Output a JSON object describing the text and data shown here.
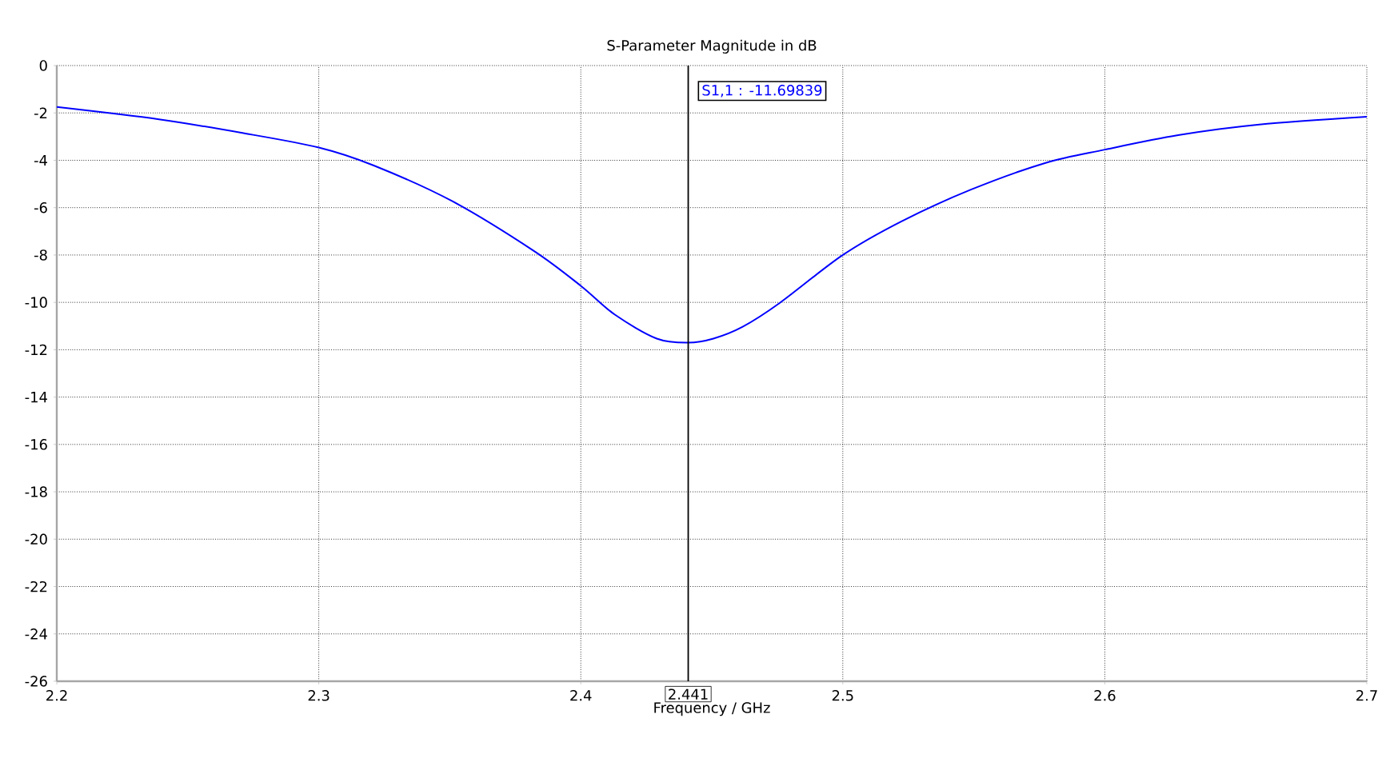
{
  "chart_data": {
    "type": "line",
    "title": "S-Parameter Magnitude in dB",
    "xlabel": "Frequency / GHz",
    "x": [
      2.2,
      2.239,
      2.27,
      2.3,
      2.321,
      2.351,
      2.382,
      2.4,
      2.413,
      2.429,
      2.441,
      2.4506,
      2.4618,
      2.476,
      2.5,
      2.5224,
      2.5489,
      2.5774,
      2.6,
      2.628,
      2.659,
      2.7
    ],
    "series": [
      {
        "color": "#0000ff",
        "values": [
          -1.75,
          -2.27,
          -2.83,
          -3.46,
          -4.22,
          -5.73,
          -7.82,
          -9.3,
          -10.52,
          -11.53,
          -11.7,
          -11.53,
          -11.03,
          -10.02,
          -8.0,
          -6.58,
          -5.24,
          -4.11,
          -3.55,
          -2.94,
          -2.49,
          -2.16
        ]
      }
    ],
    "xlim": [
      2.2,
      2.7
    ],
    "ylim": [
      -26,
      0
    ],
    "xticks": [
      2.2,
      2.3,
      2.4,
      2.5,
      2.6,
      2.7
    ],
    "yticks": [
      -26,
      -24,
      -22,
      -20,
      -18,
      -16,
      -14,
      -12,
      -10,
      -8,
      -6,
      -4,
      -2,
      0
    ],
    "grid": true,
    "ref_lines": [
      {
        "axis": "x",
        "value": 2.441,
        "label": "2.441",
        "color": "#000000"
      }
    ],
    "annotations": [
      "S1,1 : -11.69839"
    ]
  }
}
